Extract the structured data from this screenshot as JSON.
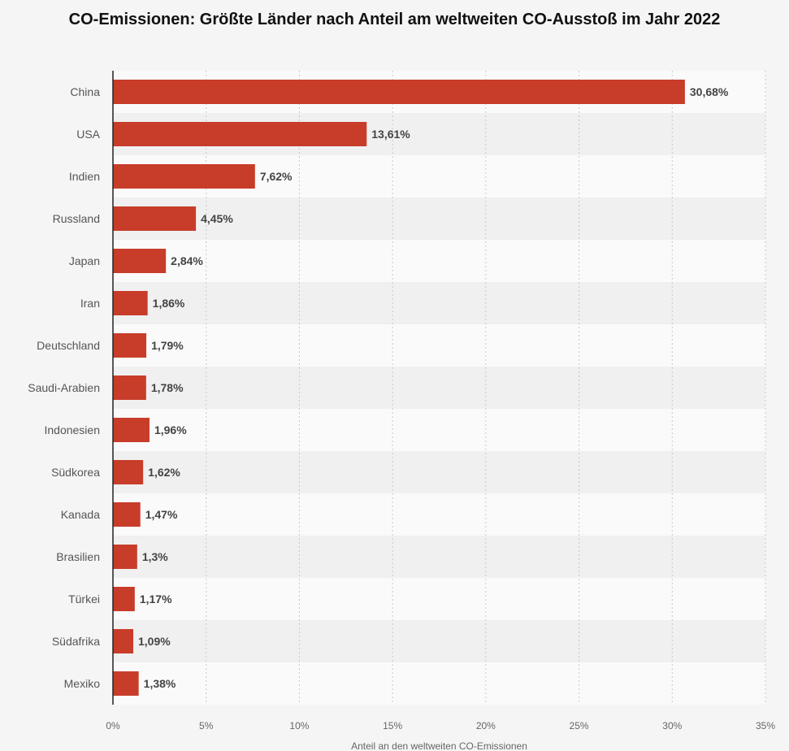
{
  "chart_data": {
    "type": "bar",
    "orientation": "horizontal",
    "title": "CO-Emissionen: Größte Länder nach Anteil am weltweiten CO-Ausstoß im Jahr 2022",
    "xlabel": "Anteil an den weltweiten CO-Emissionen",
    "ylabel": "",
    "categories": [
      "China",
      "USA",
      "Indien",
      "Russland",
      "Japan",
      "Iran",
      "Deutschland",
      "Saudi-Arabien",
      "Indonesien",
      "Südkorea",
      "Kanada",
      "Brasilien",
      "Türkei",
      "Südafrika",
      "Mexiko"
    ],
    "values": [
      30.68,
      13.61,
      7.62,
      4.45,
      2.84,
      1.86,
      1.79,
      1.78,
      1.96,
      1.62,
      1.47,
      1.3,
      1.17,
      1.09,
      1.38
    ],
    "value_labels": [
      "30,68%",
      "13,61%",
      "7,62%",
      "4,45%",
      "2,84%",
      "1,86%",
      "1,79%",
      "1,78%",
      "1,96%",
      "1,62%",
      "1,47%",
      "1,3%",
      "1,17%",
      "1,09%",
      "1,38%"
    ],
    "x_ticks": [
      0,
      5,
      10,
      15,
      20,
      25,
      30,
      35
    ],
    "x_tick_labels": [
      "0%",
      "5%",
      "10%",
      "15%",
      "20%",
      "25%",
      "30%",
      "35%"
    ],
    "xlim": [
      0,
      35
    ],
    "grid": true,
    "colors": {
      "bar": "#c73d2a",
      "band": "#f0f0f0"
    }
  }
}
